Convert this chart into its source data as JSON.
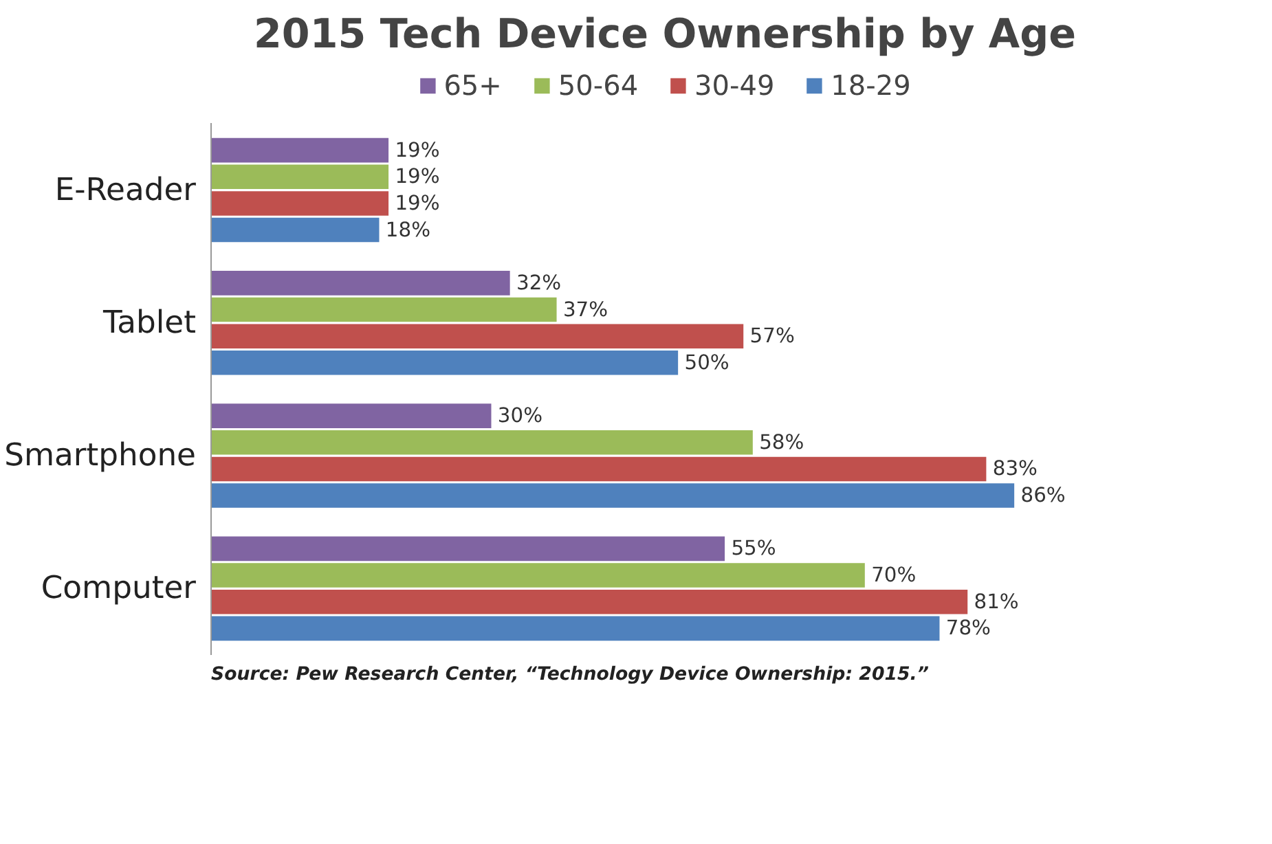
{
  "chart_data": {
    "type": "bar",
    "orientation": "horizontal",
    "title": "2015 Tech Device Ownership by Age",
    "categories": [
      "E-Reader",
      "Tablet",
      "Smartphone",
      "Computer"
    ],
    "series": [
      {
        "name": "65+",
        "color": "#8064a2",
        "values": [
          19,
          32,
          30,
          55
        ],
        "value_labels": [
          "19%",
          "32%",
          "30%",
          "55%"
        ]
      },
      {
        "name": "50-64",
        "color": "#9bbb59",
        "values": [
          19,
          37,
          58,
          70
        ],
        "value_labels": [
          "19%",
          "37%",
          "58%",
          "70%"
        ]
      },
      {
        "name": "30-49",
        "color": "#c0504d",
        "values": [
          19,
          57,
          83,
          81
        ],
        "value_labels": [
          "19%",
          "57%",
          "83%",
          "81%"
        ]
      },
      {
        "name": "18-29",
        "color": "#4f81bd",
        "values": [
          18,
          50,
          86,
          78
        ],
        "value_labels": [
          "18%",
          "50%",
          "86%",
          "78%"
        ]
      }
    ],
    "legend": "top",
    "grid": false,
    "annotations": [
      "Source: Pew Research Center, “Technology Device Ownership: 2015.”"
    ]
  }
}
